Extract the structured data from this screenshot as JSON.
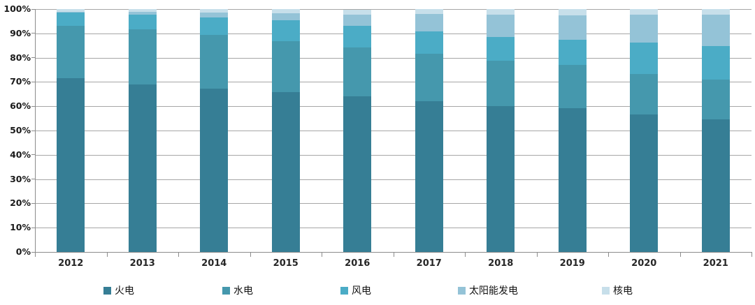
{
  "chart_data": {
    "type": "bar",
    "variant": "stacked-percent",
    "title": "",
    "xlabel": "",
    "ylabel": "",
    "ylim": [
      0,
      100
    ],
    "grid": true,
    "legend_position": "bottom",
    "categories": [
      "2012",
      "2013",
      "2014",
      "2015",
      "2016",
      "2017",
      "2018",
      "2019",
      "2020",
      "2021"
    ],
    "yticks": [
      "0%",
      "10%",
      "20%",
      "30%",
      "40%",
      "50%",
      "60%",
      "70%",
      "80%",
      "90%",
      "100%"
    ],
    "series": [
      {
        "name": "火电",
        "color": "#367E95",
        "values": [
          71.5,
          69.1,
          67.4,
          65.9,
          64.0,
          62.2,
          60.2,
          59.2,
          56.6,
          54.6
        ]
      },
      {
        "name": "水电",
        "color": "#4598AD",
        "values": [
          21.7,
          22.5,
          22.2,
          21.0,
          20.1,
          19.3,
          18.6,
          17.7,
          16.8,
          16.5
        ]
      },
      {
        "name": "风电",
        "color": "#4BACC6",
        "values": [
          5.3,
          6.0,
          7.0,
          8.6,
          8.9,
          9.2,
          9.7,
          10.4,
          12.8,
          13.8
        ]
      },
      {
        "name": "太阳能发电",
        "color": "#94C3D7",
        "values": [
          0.3,
          1.2,
          2.0,
          2.8,
          4.7,
          7.3,
          9.2,
          10.2,
          11.5,
          12.9
        ]
      },
      {
        "name": "核电",
        "color": "#C7DFEA",
        "values": [
          1.1,
          1.2,
          1.5,
          1.8,
          2.1,
          2.0,
          2.4,
          2.4,
          2.3,
          2.2
        ]
      }
    ]
  },
  "axis_colors": {
    "gridline": "#a6a6a6",
    "axis": "#8c8c8c",
    "tick_label": "#1a1a1a"
  }
}
